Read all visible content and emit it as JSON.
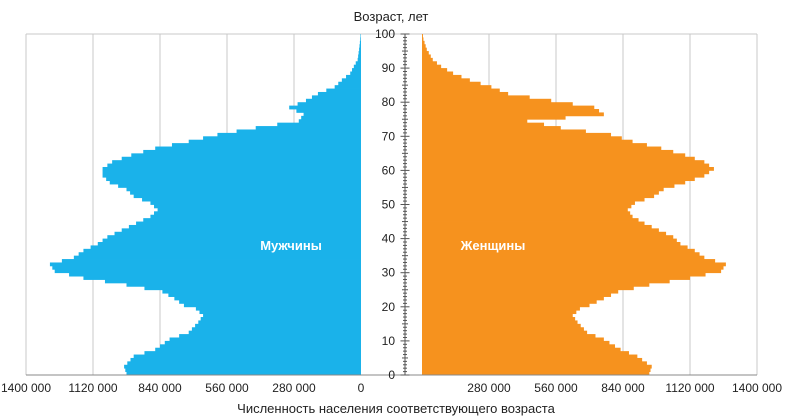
{
  "chart_data": {
    "type": "bar",
    "orientation": "horizontal",
    "title": "",
    "ylabel": "Возраст, лет",
    "xlabel": "Численность населения соответствующего возраста",
    "x_tick_labels_left": [
      "1400 000",
      "1120 000",
      "840 000",
      "560 000",
      "280 000",
      "0"
    ],
    "x_tick_labels_right": [
      "280 000",
      "560 000",
      "840 000",
      "1120 000",
      "1400 000"
    ],
    "x_tick_values": [
      0,
      280000,
      560000,
      840000,
      1120000,
      1400000
    ],
    "y_tick_labels": [
      "0",
      "10",
      "20",
      "30",
      "40",
      "50",
      "60",
      "70",
      "80",
      "90",
      "100"
    ],
    "y_tick_values": [
      0,
      10,
      20,
      30,
      40,
      50,
      60,
      70,
      80,
      90,
      100
    ],
    "xlim": [
      0,
      1400000
    ],
    "ylim": [
      0,
      100
    ],
    "grid": true,
    "age_groups_step": 1,
    "series": [
      {
        "name": "Мужчины",
        "side": "left",
        "color": "#1ab2ea",
        "anchors": [
          [
            0,
            980000
          ],
          [
            2,
            990000
          ],
          [
            5,
            950000
          ],
          [
            7,
            860000
          ],
          [
            10,
            800000
          ],
          [
            12,
            720000
          ],
          [
            15,
            680000
          ],
          [
            17,
            660000
          ],
          [
            19,
            690000
          ],
          [
            20,
            740000
          ],
          [
            22,
            780000
          ],
          [
            24,
            830000
          ],
          [
            26,
            980000
          ],
          [
            28,
            1160000
          ],
          [
            30,
            1280000
          ],
          [
            32,
            1300000
          ],
          [
            34,
            1200000
          ],
          [
            36,
            1160000
          ],
          [
            38,
            1100000
          ],
          [
            40,
            1060000
          ],
          [
            42,
            1000000
          ],
          [
            44,
            940000
          ],
          [
            46,
            880000
          ],
          [
            48,
            850000
          ],
          [
            50,
            880000
          ],
          [
            52,
            950000
          ],
          [
            54,
            980000
          ],
          [
            56,
            1050000
          ],
          [
            58,
            1080000
          ],
          [
            60,
            1080000
          ],
          [
            62,
            1040000
          ],
          [
            64,
            960000
          ],
          [
            66,
            860000
          ],
          [
            68,
            720000
          ],
          [
            70,
            600000
          ],
          [
            72,
            440000
          ],
          [
            74,
            260000
          ],
          [
            76,
            240000
          ],
          [
            78,
            300000
          ],
          [
            80,
            230000
          ],
          [
            82,
            180000
          ],
          [
            84,
            110000
          ],
          [
            86,
            80000
          ],
          [
            88,
            45000
          ],
          [
            90,
            30000
          ],
          [
            92,
            14000
          ],
          [
            95,
            8000
          ],
          [
            98,
            3000
          ],
          [
            100,
            1000
          ]
        ]
      },
      {
        "name": "Женщины",
        "side": "right",
        "color": "#f6921e",
        "anchors": [
          [
            0,
            950000
          ],
          [
            2,
            960000
          ],
          [
            5,
            900000
          ],
          [
            7,
            830000
          ],
          [
            10,
            760000
          ],
          [
            12,
            690000
          ],
          [
            15,
            650000
          ],
          [
            17,
            630000
          ],
          [
            19,
            660000
          ],
          [
            20,
            700000
          ],
          [
            22,
            760000
          ],
          [
            24,
            820000
          ],
          [
            26,
            950000
          ],
          [
            28,
            1120000
          ],
          [
            30,
            1250000
          ],
          [
            32,
            1270000
          ],
          [
            34,
            1180000
          ],
          [
            36,
            1140000
          ],
          [
            38,
            1080000
          ],
          [
            40,
            1050000
          ],
          [
            42,
            990000
          ],
          [
            44,
            930000
          ],
          [
            46,
            880000
          ],
          [
            48,
            860000
          ],
          [
            50,
            890000
          ],
          [
            52,
            970000
          ],
          [
            54,
            1010000
          ],
          [
            56,
            1100000
          ],
          [
            58,
            1180000
          ],
          [
            60,
            1220000
          ],
          [
            62,
            1180000
          ],
          [
            64,
            1100000
          ],
          [
            66,
            1000000
          ],
          [
            68,
            880000
          ],
          [
            70,
            790000
          ],
          [
            72,
            580000
          ],
          [
            74,
            440000
          ],
          [
            76,
            760000
          ],
          [
            78,
            720000
          ],
          [
            80,
            540000
          ],
          [
            82,
            360000
          ],
          [
            84,
            290000
          ],
          [
            86,
            200000
          ],
          [
            88,
            130000
          ],
          [
            90,
            80000
          ],
          [
            92,
            45000
          ],
          [
            95,
            20000
          ],
          [
            98,
            6000
          ],
          [
            100,
            2000
          ]
        ]
      }
    ]
  }
}
